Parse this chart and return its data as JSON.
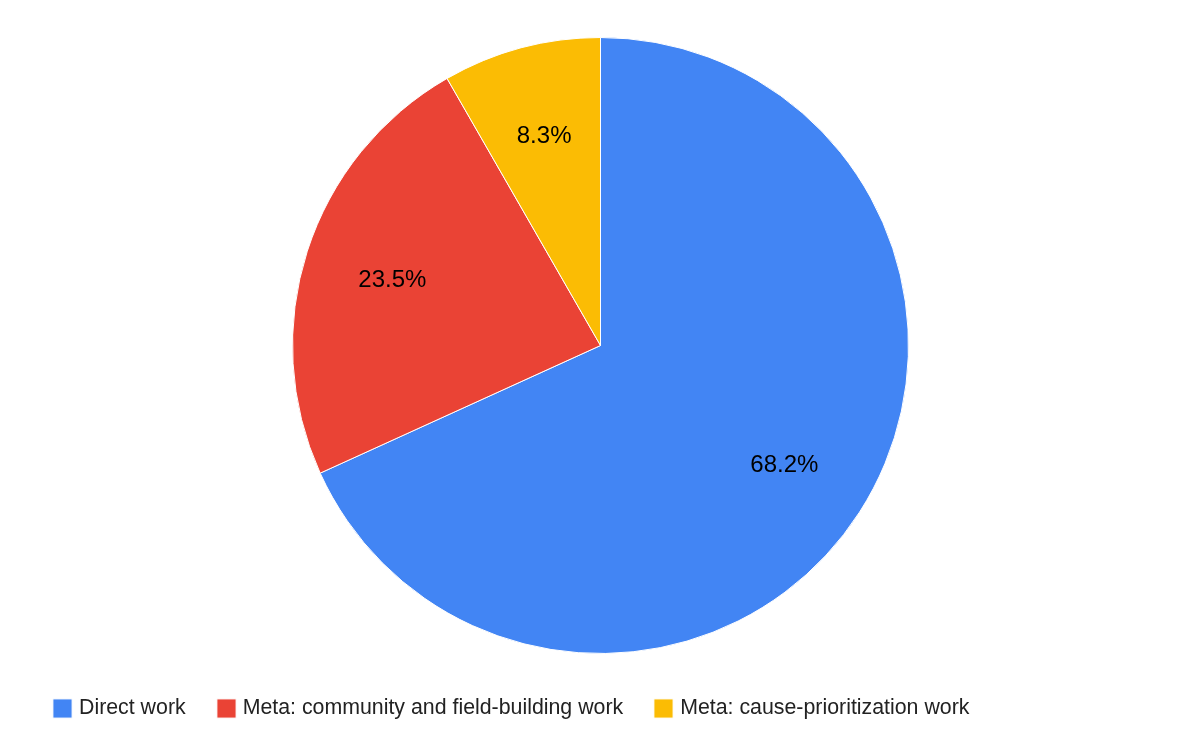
{
  "chart_data": {
    "type": "pie",
    "categories": [
      "Direct work",
      "Meta: community and field-building work",
      "Meta: cause-prioritization work"
    ],
    "values": [
      68.2,
      23.5,
      8.3
    ],
    "colors": [
      "#4285f4",
      "#ea4335",
      "#fbbc04"
    ],
    "value_labels": [
      "68.2%",
      "23.5%",
      "8.3%"
    ],
    "legend": "bottom"
  }
}
